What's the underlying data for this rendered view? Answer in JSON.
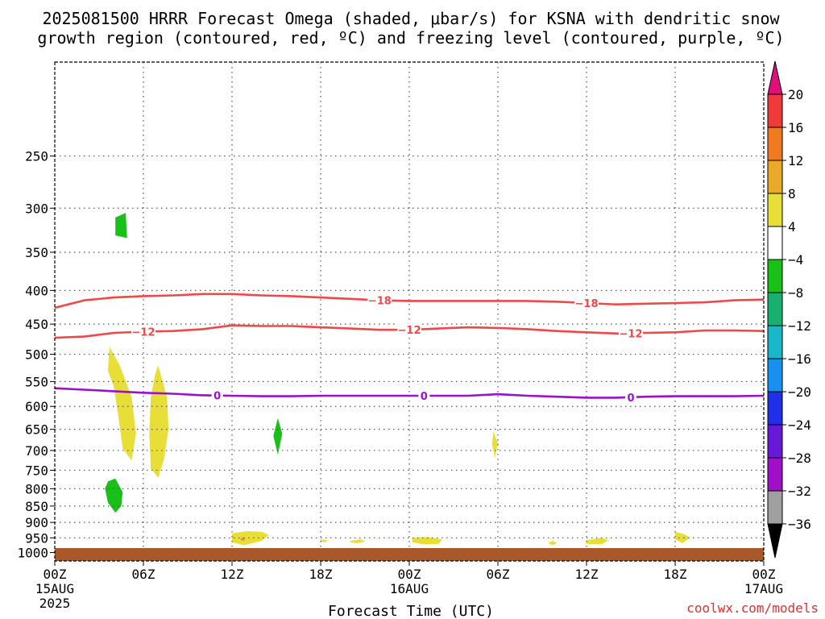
{
  "title_line1": "2025081500 HRRR Forecast Omega (shaded, μbar/s) for KSNA with dendritic snow",
  "title_line2": "growth region (contoured, red, ºC) and freezing level (contoured, purple, ºC)",
  "credit": "coolwx.com/models",
  "colors": {
    "dendritic": "#f04848",
    "freezing": "#9a10d0",
    "ground": "#a8582a",
    "credit": "#e03030"
  },
  "chart_data": {
    "type": "heatmap",
    "title": "2025081500 HRRR Forecast Omega (shaded, μbar/s) for KSNA with dendritic snow growth region (contoured, red, ºC) and freezing level (contoured, purple, ºC)",
    "xlabel": "Forecast Time (UTC)",
    "ylabel": "",
    "xlim": [
      0,
      48
    ],
    "ylim": [
      1030,
      180
    ],
    "y_scale": "log-pressure",
    "grid": true,
    "x_ticks": [
      {
        "x": 0,
        "label": "00Z",
        "sub": "15AUG",
        "sub2": "2025"
      },
      {
        "x": 6,
        "label": "06Z"
      },
      {
        "x": 12,
        "label": "12Z"
      },
      {
        "x": 18,
        "label": "18Z"
      },
      {
        "x": 24,
        "label": "00Z",
        "sub": "16AUG"
      },
      {
        "x": 30,
        "label": "06Z"
      },
      {
        "x": 36,
        "label": "12Z"
      },
      {
        "x": 42,
        "label": "18Z"
      },
      {
        "x": 48,
        "label": "00Z",
        "sub": "17AUG"
      }
    ],
    "y_ticks": [
      250,
      300,
      350,
      400,
      450,
      500,
      550,
      600,
      650,
      700,
      750,
      800,
      850,
      900,
      950,
      1000
    ],
    "colorbar": {
      "levels": [
        "20",
        "16",
        "12",
        "8",
        "4",
        "-4",
        "-8",
        "-12",
        "-16",
        "-20",
        "-24",
        "-28",
        "-32",
        "-36"
      ],
      "colors": [
        "#e0107a",
        "#ee3a3a",
        "#f07a20",
        "#e8aa28",
        "#e8de38",
        "#ffffff",
        "#18c018",
        "#18b070",
        "#18b8c8",
        "#1890f0",
        "#2030e8",
        "#6818d8",
        "#a010c8",
        "#a0a0a0",
        "#000000"
      ]
    },
    "contours": [
      {
        "name": "-18",
        "kind": "dendritic",
        "points": [
          [
            0,
            425
          ],
          [
            2,
            414
          ],
          [
            4,
            410
          ],
          [
            6,
            408
          ],
          [
            8,
            407
          ],
          [
            10,
            405
          ],
          [
            12,
            405
          ],
          [
            14,
            407
          ],
          [
            16,
            408
          ],
          [
            18,
            410
          ],
          [
            20,
            412
          ],
          [
            22,
            414
          ],
          [
            24,
            415
          ],
          [
            26,
            415
          ],
          [
            28,
            415
          ],
          [
            30,
            415
          ],
          [
            32,
            415
          ],
          [
            34,
            416
          ],
          [
            36,
            418
          ],
          [
            38,
            420
          ],
          [
            40,
            419
          ],
          [
            42,
            418
          ],
          [
            44,
            417
          ],
          [
            46,
            414
          ],
          [
            48,
            413
          ]
        ],
        "label_x": [
          22,
          36
        ]
      },
      {
        "name": "-12",
        "kind": "dendritic",
        "points": [
          [
            0,
            472
          ],
          [
            2,
            470
          ],
          [
            4,
            464
          ],
          [
            6,
            462
          ],
          [
            8,
            461
          ],
          [
            10,
            458
          ],
          [
            12,
            452
          ],
          [
            14,
            453
          ],
          [
            16,
            453
          ],
          [
            18,
            455
          ],
          [
            20,
            457
          ],
          [
            22,
            459
          ],
          [
            24,
            459
          ],
          [
            26,
            457
          ],
          [
            28,
            455
          ],
          [
            30,
            456
          ],
          [
            32,
            458
          ],
          [
            34,
            461
          ],
          [
            36,
            463
          ],
          [
            38,
            465
          ],
          [
            40,
            464
          ],
          [
            42,
            463
          ],
          [
            44,
            460
          ],
          [
            46,
            460
          ],
          [
            48,
            461
          ]
        ],
        "label_x": [
          6,
          24,
          39
        ]
      },
      {
        "name": "0",
        "kind": "freezing",
        "points": [
          [
            0,
            563
          ],
          [
            2,
            566
          ],
          [
            4,
            569
          ],
          [
            6,
            572
          ],
          [
            8,
            574
          ],
          [
            10,
            577
          ],
          [
            12,
            578
          ],
          [
            14,
            579
          ],
          [
            16,
            579
          ],
          [
            18,
            578
          ],
          [
            20,
            578
          ],
          [
            22,
            578
          ],
          [
            24,
            578
          ],
          [
            26,
            578
          ],
          [
            28,
            578
          ],
          [
            30,
            575
          ],
          [
            32,
            578
          ],
          [
            34,
            580
          ],
          [
            36,
            582
          ],
          [
            38,
            582
          ],
          [
            40,
            580
          ],
          [
            42,
            579
          ],
          [
            44,
            579
          ],
          [
            46,
            579
          ],
          [
            48,
            578
          ]
        ],
        "label_x": [
          11,
          25,
          39
        ]
      }
    ],
    "omega_regions": [
      {
        "level": "4",
        "color": "#e8de38",
        "points": [
          [
            3.7,
            487
          ],
          [
            4.4,
            520
          ],
          [
            5.2,
            580
          ],
          [
            5.5,
            660
          ],
          [
            5.2,
            725
          ],
          [
            4.6,
            695
          ],
          [
            4.3,
            620
          ],
          [
            4.0,
            560
          ],
          [
            3.6,
            530
          ]
        ]
      },
      {
        "level": "4",
        "color": "#e8de38",
        "points": [
          [
            7.0,
            520
          ],
          [
            7.6,
            580
          ],
          [
            7.7,
            650
          ],
          [
            7.4,
            720
          ],
          [
            7.0,
            770
          ],
          [
            6.5,
            745
          ],
          [
            6.4,
            660
          ],
          [
            6.5,
            580
          ],
          [
            6.8,
            535
          ]
        ]
      },
      {
        "level": "-4",
        "color": "#18c018",
        "points": [
          [
            4.1,
            310
          ],
          [
            4.8,
            305
          ],
          [
            4.9,
            333
          ],
          [
            4.1,
            330
          ]
        ]
      },
      {
        "level": "-4",
        "color": "#18c018",
        "points": [
          [
            3.6,
            780
          ],
          [
            4.1,
            772
          ],
          [
            4.6,
            810
          ],
          [
            4.5,
            850
          ],
          [
            4.1,
            870
          ],
          [
            3.6,
            840
          ],
          [
            3.4,
            800
          ]
        ]
      },
      {
        "level": "-4",
        "color": "#18c018",
        "points": [
          [
            15.1,
            625
          ],
          [
            15.4,
            660
          ],
          [
            15.1,
            710
          ],
          [
            14.8,
            665
          ]
        ]
      },
      {
        "level": "4",
        "color": "#e8de38",
        "points": [
          [
            29.7,
            655
          ],
          [
            30.0,
            682
          ],
          [
            29.8,
            718
          ],
          [
            29.6,
            685
          ]
        ]
      },
      {
        "level": "4",
        "color": "#e8de38",
        "points": [
          [
            12.0,
            935
          ],
          [
            13.0,
            928
          ],
          [
            14.0,
            930
          ],
          [
            14.5,
            940
          ],
          [
            14.0,
            960
          ],
          [
            12.8,
            975
          ],
          [
            12.0,
            965
          ]
        ]
      },
      {
        "level": "4",
        "color": "#e8de38",
        "points": [
          [
            18.0,
            955
          ],
          [
            18.5,
            958
          ],
          [
            18.3,
            965
          ],
          [
            18.0,
            962
          ]
        ]
      },
      {
        "level": "4",
        "color": "#e8de38",
        "points": [
          [
            20.0,
            960
          ],
          [
            20.7,
            955
          ],
          [
            21.0,
            962
          ],
          [
            20.5,
            968
          ],
          [
            20.0,
            965
          ]
        ]
      },
      {
        "level": "4",
        "color": "#e8de38",
        "points": [
          [
            24.2,
            950
          ],
          [
            25.2,
            947
          ],
          [
            26.2,
            955
          ],
          [
            26.0,
            970
          ],
          [
            25.0,
            972
          ],
          [
            24.2,
            965
          ]
        ]
      },
      {
        "level": "4",
        "color": "#e8de38",
        "points": [
          [
            33.7,
            960
          ],
          [
            34.0,
            967
          ],
          [
            33.7,
            975
          ],
          [
            33.4,
            967
          ]
        ]
      },
      {
        "level": "4",
        "color": "#e8de38",
        "points": [
          [
            36.0,
            958
          ],
          [
            37.0,
            950
          ],
          [
            37.5,
            958
          ],
          [
            37.0,
            972
          ],
          [
            36.0,
            970
          ]
        ]
      },
      {
        "level": "4",
        "color": "#e8de38",
        "points": [
          [
            42.0,
            930
          ],
          [
            42.6,
            938
          ],
          [
            43.0,
            950
          ],
          [
            42.5,
            968
          ],
          [
            42.0,
            955
          ]
        ]
      },
      {
        "level": "8",
        "color": "#ee8860",
        "points": [
          [
            12.6,
            950
          ],
          [
            12.9,
            950
          ],
          [
            12.8,
            960
          ],
          [
            12.6,
            958
          ]
        ]
      }
    ]
  }
}
